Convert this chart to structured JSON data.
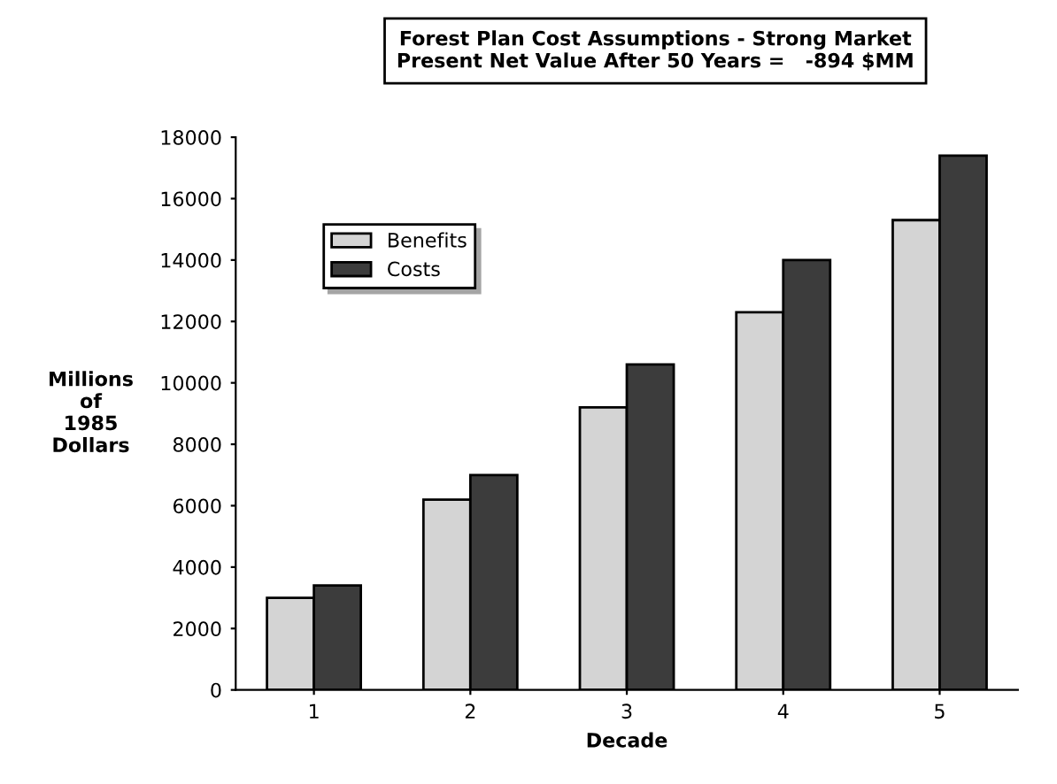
{
  "chart_data": {
    "type": "bar",
    "title": "Forest Plan Cost Assumptions - Strong Market\nPresent Net Value After 50 Years =   -894 $MM",
    "xlabel": "Decade",
    "ylabel": "Millions\nof\n1985\nDollars",
    "categories": [
      "1",
      "2",
      "3",
      "4",
      "5"
    ],
    "series": [
      {
        "name": "Benefits",
        "color": "#d4d4d4",
        "values": [
          3000,
          6200,
          9200,
          12300,
          15300
        ]
      },
      {
        "name": "Costs",
        "color": "#3c3c3c",
        "values": [
          3400,
          7000,
          10600,
          14000,
          17400
        ]
      }
    ],
    "ylim": [
      0,
      18000
    ],
    "yticks": [
      0,
      2000,
      4000,
      6000,
      8000,
      10000,
      12000,
      14000,
      16000,
      18000
    ],
    "grid": false,
    "legend": "top left"
  }
}
